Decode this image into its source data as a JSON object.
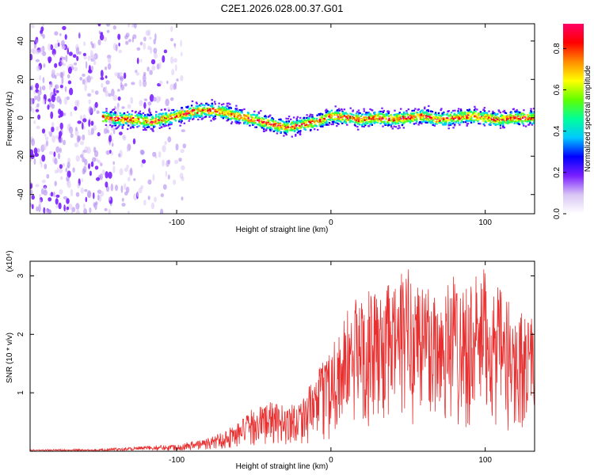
{
  "page": {
    "title": "C2E1.2026.028.00.37.G01"
  },
  "chart_data": [
    {
      "id": "spectrogram",
      "type": "heatmap",
      "title": "C2E1.2026.028.00.37.G01",
      "xlabel": "Height of straight line (km)",
      "ylabel": "Frequency (Hz)",
      "xlim": [
        -195,
        132
      ],
      "ylim": [
        -50,
        49
      ],
      "x_ticks": [
        -100,
        0,
        100
      ],
      "x_tick_labels": [
        "-100",
        "0",
        "100"
      ],
      "y_ticks": [
        -40,
        -20,
        0,
        20,
        40
      ],
      "y_tick_labels": [
        "-40",
        "-20",
        "0",
        "20",
        "40"
      ],
      "noise_region_x": [
        -195,
        -95
      ],
      "signal_start_x": -148,
      "signal_center_track": {
        "x": [
          -148,
          -130,
          -115,
          -100,
          -90,
          -80,
          -70,
          -60,
          -50,
          -40,
          -35,
          -28,
          -20,
          -10,
          -5,
          0,
          10,
          20,
          30,
          40,
          50,
          60,
          70,
          80,
          90,
          100,
          110,
          120,
          132
        ],
        "y": [
          0,
          -1,
          -2,
          1,
          3,
          4,
          3,
          1,
          -1,
          -3,
          -4,
          -5,
          -4,
          -2,
          -1,
          1,
          0,
          -1,
          0,
          -1,
          0,
          1,
          -1,
          0,
          1,
          0,
          -1,
          0,
          0
        ]
      },
      "colorbar": {
        "label": "Normalized spectral amplitude",
        "range": [
          0,
          0.92
        ],
        "ticks": [
          0.0,
          0.2,
          0.4,
          0.6,
          0.8
        ],
        "tick_labels": [
          "0.0",
          "0.2",
          "0.4",
          "0.6",
          "0.8"
        ],
        "colors": [
          "#ffffff",
          "#d9c6f5",
          "#7a1fff",
          "#0000ff",
          "#00c8ff",
          "#00ff9a",
          "#60ff00",
          "#ffff00",
          "#ff8c00",
          "#ff0000",
          "#ff0066"
        ]
      }
    },
    {
      "id": "snr",
      "type": "line",
      "xlabel": "Height of straight line (km)",
      "ylabel": "SNR (10 * v/v)",
      "y_multiplier": "(x10⁴)",
      "xlim": [
        -195,
        132
      ],
      "ylim": [
        0,
        3.25
      ],
      "x_ticks": [
        -100,
        0,
        100
      ],
      "x_tick_labels": [
        "-100",
        "0",
        "100"
      ],
      "y_ticks": [
        1,
        2,
        3
      ],
      "y_tick_labels": [
        "1",
        "2",
        "3"
      ],
      "line_color": "#e83030",
      "envelope": {
        "x": [
          -195,
          -150,
          -120,
          -100,
          -80,
          -70,
          -60,
          -50,
          -40,
          -30,
          -20,
          -10,
          0,
          10,
          20,
          30,
          40,
          50,
          60,
          70,
          80,
          90,
          100,
          110,
          120,
          132
        ],
        "y_max": [
          0.03,
          0.04,
          0.09,
          0.12,
          0.22,
          0.35,
          0.5,
          0.75,
          0.85,
          0.78,
          0.9,
          1.25,
          1.9,
          2.4,
          2.8,
          2.7,
          2.9,
          3.2,
          3.0,
          2.8,
          3.1,
          2.9,
          3.15,
          2.75,
          2.45,
          2.3
        ],
        "y_min": [
          0.0,
          0.0,
          0.01,
          0.01,
          0.02,
          0.03,
          0.05,
          0.08,
          0.1,
          0.1,
          0.12,
          0.15,
          0.2,
          0.3,
          0.4,
          0.4,
          0.45,
          0.45,
          0.4,
          0.4,
          0.4,
          0.35,
          0.4,
          0.3,
          0.2,
          0.7
        ]
      }
    }
  ]
}
